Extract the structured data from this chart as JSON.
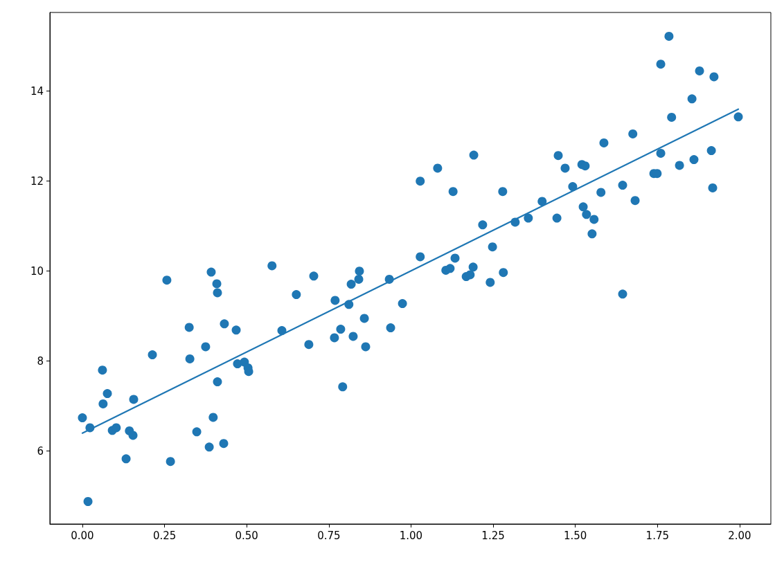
{
  "chart_data": {
    "type": "scatter",
    "marker": "circle",
    "grid": false,
    "xlim": [
      -0.099,
      2.095
    ],
    "ylim": [
      4.38,
      15.75
    ],
    "xticks": [
      {
        "value": 0,
        "label": "0.00"
      },
      {
        "value": 0.25,
        "label": "0.25"
      },
      {
        "value": 0.5,
        "label": "0.50"
      },
      {
        "value": 0.75,
        "label": "0.75"
      },
      {
        "value": 1,
        "label": "1.00"
      },
      {
        "value": 1.25,
        "label": "1.25"
      },
      {
        "value": 1.5,
        "label": "1.50"
      },
      {
        "value": 1.75,
        "label": "1.75"
      },
      {
        "value": 2,
        "label": "2.00"
      }
    ],
    "yticks": [
      6,
      8,
      10,
      12,
      14
    ],
    "series": [
      {
        "color": "#1f77b4",
        "x": [
          0.0,
          0.023,
          0.017,
          0.061,
          0.063,
          0.076,
          0.091,
          0.103,
          0.133,
          0.143,
          0.154,
          0.156,
          0.213,
          0.257,
          0.268,
          0.325,
          0.327,
          0.348,
          0.375,
          0.386,
          0.392,
          0.398,
          0.409,
          0.411,
          0.411,
          0.43,
          0.432,
          0.468,
          0.472,
          0.493,
          0.504,
          0.506,
          0.577,
          0.607,
          0.651,
          0.689,
          0.704,
          0.767,
          0.769,
          0.786,
          0.792,
          0.811,
          0.818,
          0.824,
          0.841,
          0.843,
          0.858,
          0.862,
          0.934,
          0.938,
          0.974,
          1.028,
          1.028,
          1.081,
          1.106,
          1.119,
          1.128,
          1.134,
          1.168,
          1.18,
          1.189,
          1.191,
          1.218,
          1.241,
          1.248,
          1.279,
          1.281,
          1.317,
          1.357,
          1.399,
          1.444,
          1.448,
          1.469,
          1.492,
          1.52,
          1.524,
          1.53,
          1.534,
          1.551,
          1.557,
          1.578,
          1.587,
          1.644,
          1.644,
          1.675,
          1.682,
          1.739,
          1.749,
          1.76,
          1.76,
          1.785,
          1.793,
          1.817,
          1.855,
          1.861,
          1.878,
          1.914,
          1.918,
          1.922,
          1.996
        ],
        "values": [
          6.74,
          6.52,
          4.88,
          7.8,
          7.05,
          7.28,
          6.46,
          6.52,
          5.83,
          6.45,
          6.35,
          7.15,
          8.14,
          9.8,
          5.77,
          8.75,
          8.05,
          6.43,
          8.32,
          6.09,
          9.98,
          6.75,
          9.72,
          9.52,
          7.54,
          6.17,
          8.83,
          8.69,
          7.94,
          7.98,
          7.85,
          7.77,
          10.12,
          8.68,
          9.48,
          8.37,
          9.89,
          8.52,
          9.35,
          8.71,
          7.43,
          9.26,
          9.71,
          8.55,
          9.82,
          10.0,
          8.95,
          8.32,
          9.82,
          8.74,
          9.28,
          12.0,
          10.32,
          12.29,
          10.02,
          10.06,
          11.77,
          10.29,
          9.88,
          9.92,
          10.09,
          12.58,
          11.03,
          9.75,
          10.54,
          11.77,
          9.97,
          11.09,
          11.18,
          11.55,
          11.18,
          12.57,
          12.29,
          11.88,
          12.37,
          11.43,
          12.34,
          11.26,
          10.83,
          11.15,
          11.75,
          12.85,
          11.91,
          9.49,
          13.05,
          11.57,
          12.17,
          12.17,
          12.62,
          14.6,
          15.22,
          13.42,
          12.35,
          13.83,
          12.48,
          14.45,
          12.68,
          11.85,
          14.32,
          13.43
        ]
      },
      {
        "type": "line",
        "color": "#1f77b4",
        "marker": "none",
        "line_style": "solid",
        "x": [
          0.0,
          1.996
        ],
        "values": [
          6.4,
          13.6
        ]
      }
    ]
  }
}
